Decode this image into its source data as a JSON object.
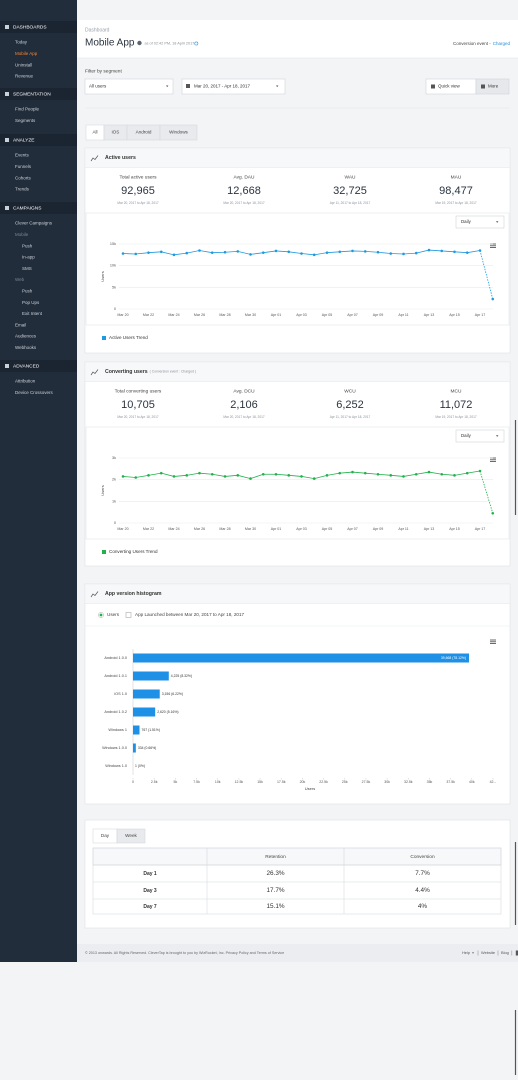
{
  "sidebar": [
    {
      "title": "DASHBOARDS",
      "items": [
        "Today",
        "Mobile App",
        "Uninstall",
        "Revenue"
      ]
    },
    {
      "title": "SEGMENTATION",
      "items": [
        "Find People",
        "Segments"
      ]
    },
    {
      "title": "ANALYZE",
      "items": [
        "Events",
        "Funnels",
        "Cohorts",
        "Trends"
      ]
    },
    {
      "title": "CAMPAIGNS",
      "items": [
        "Clever Campaigns",
        "Mobile",
        "Push",
        "In-app",
        "SMS",
        "Web",
        "Push",
        "Pop Ups",
        "Exit Intent",
        "Email",
        "Audiences",
        "Webhooks"
      ]
    },
    {
      "title": "ADVANCED",
      "items": [
        "Attribution",
        "Device Crossovers"
      ]
    }
  ],
  "header": {
    "breadcrumb": "Dashboard",
    "title": "Mobile App",
    "timestamp": "as of 02:42 PM, 18 April 2017",
    "conversion_label": "Conversion event -",
    "conversion_value": "Charged"
  },
  "filter": {
    "label": "Filter by segment",
    "segment": "All users",
    "date_range": "Mar 20, 2017 - Apr 18, 2017",
    "quick_view": "Quick view",
    "more": "More"
  },
  "platform_tabs": [
    "All",
    "iOS",
    "Android",
    "Windows"
  ],
  "panels": [
    {
      "stats": [
        {
          "label": "Total active users",
          "value": "92,965",
          "range": "Mar 20, 2017 to Apr 18, 2017"
        },
        {
          "label": "Avg. DAU",
          "value": "12,668",
          "range": "Mar 20, 2017 to Apr 18, 2017"
        },
        {
          "label": "WAU",
          "value": "32,725",
          "range": "Apr 11, 2017 to Apr 18, 2017"
        },
        {
          "label": "MAU",
          "value": "98,477",
          "range": "Mar 19, 2017 to Apr 18, 2017"
        }
      ]
    },
    {
      "stats": [
        {
          "label": "Total converting users",
          "value": "10,705",
          "range": "Mar 20, 2017 to Apr 18, 2017"
        },
        {
          "label": "Avg. DCU",
          "value": "2,106",
          "range": "Mar 20, 2017 to Apr 18, 2017"
        },
        {
          "label": "WCU",
          "value": "6,252",
          "range": "Apr 11, 2017 to Apr 18, 2017"
        },
        {
          "label": "MCU",
          "value": "11,072",
          "range": "Mar 19, 2017 to Apr 18, 2017"
        }
      ]
    }
  ],
  "chart_data": [
    {
      "type": "line",
      "title": "Active users",
      "dropdown": "Daily",
      "ylabel": "Users",
      "categories": [
        "Mar 20",
        null,
        "Mar 22",
        null,
        "Mar 24",
        null,
        "Mar 26",
        null,
        "Mar 28",
        null,
        "Mar 30",
        null,
        "Apr 01",
        null,
        "Apr 03",
        null,
        "Apr 05",
        null,
        "Apr 07",
        null,
        "Apr 09",
        null,
        "Apr 11",
        null,
        "Apr 13",
        null,
        "Apr 15",
        null,
        "Apr 17",
        null
      ],
      "series": [
        {
          "name": "Active Users Trend",
          "color": "#1e9be0",
          "values": [
            12800,
            12700,
            13000,
            13200,
            12500,
            12900,
            13500,
            13000,
            13100,
            13300,
            12600,
            13000,
            13400,
            13200,
            12800,
            12500,
            13000,
            13200,
            13400,
            13300,
            13100,
            12800,
            12700,
            12900,
            13600,
            13400,
            13200,
            13000,
            13500,
            2300
          ]
        }
      ],
      "ylim": [
        0,
        15000
      ],
      "yticks": [
        0,
        {
          "value": 5000,
          "label": "5k"
        },
        {
          "value": 10000,
          "label": "10k"
        },
        {
          "value": 15000,
          "label": "15k"
        }
      ],
      "grid": true
    },
    {
      "type": "line",
      "title": "Converting users",
      "subtitle": "( Conversion event : Charged )",
      "dropdown": "Daily",
      "ylabel": "Users",
      "categories": [
        "Mar 20",
        null,
        "Mar 22",
        null,
        "Mar 24",
        null,
        "Mar 26",
        null,
        "Mar 28",
        null,
        "Mar 30",
        null,
        "Apr 01",
        null,
        "Apr 03",
        null,
        "Apr 05",
        null,
        "Apr 07",
        null,
        "Apr 09",
        null,
        "Apr 11",
        null,
        "Apr 13",
        null,
        "Apr 15",
        null,
        "Apr 17",
        null
      ],
      "series": [
        {
          "name": "Converting Users Trend",
          "color": "#22b14c",
          "values": [
            2150,
            2100,
            2200,
            2300,
            2150,
            2200,
            2300,
            2250,
            2150,
            2200,
            2050,
            2250,
            2250,
            2200,
            2150,
            2050,
            2200,
            2300,
            2350,
            2300,
            2250,
            2200,
            2150,
            2250,
            2350,
            2250,
            2200,
            2300,
            2400,
            450
          ]
        }
      ],
      "ylim": [
        0,
        3000
      ],
      "yticks": [
        0,
        {
          "value": 1000,
          "label": "1k"
        },
        {
          "value": 2000,
          "label": "2k"
        },
        {
          "value": 3000,
          "label": "3k"
        }
      ],
      "grid": true
    },
    {
      "type": "hbar",
      "title": "App version histogram",
      "radio": "Users",
      "checkbox": "App Launched between Mar 20, 2017 to Apr 18, 2017",
      "xlabel": "Users",
      "color": "#1e90e6",
      "categories": [
        "Android 1.0.0",
        "Android 1.0.1",
        "iOS 1.0",
        "Android 1.0.2",
        "Windows 1",
        "Windows 1.0.0",
        "Windows 1.0"
      ],
      "values": [
        39668,
        4225,
        3156,
        2620,
        767,
        334,
        1
      ],
      "value_labels": [
        "39,668 (78.12%)",
        "4,225 (8.32%)",
        "3,156 (6.22%)",
        "2,620 (5.16%)",
        "767 (1.51%)",
        "334 (0.66%)",
        "1 (0%)"
      ],
      "xlim": [
        0,
        42500
      ],
      "xticks": [
        0,
        {
          "value": 2500,
          "label": "2.5k"
        },
        {
          "value": 5000,
          "label": "5k"
        },
        {
          "value": 7500,
          "label": "7.5k"
        },
        {
          "value": 10000,
          "label": "10k"
        },
        {
          "value": 12500,
          "label": "12.5k"
        },
        {
          "value": 15000,
          "label": "15k"
        },
        {
          "value": 17500,
          "label": "17.5k"
        },
        {
          "value": 20000,
          "label": "20k"
        },
        {
          "value": 22500,
          "label": "22.5k"
        },
        {
          "value": 25000,
          "label": "25k"
        },
        {
          "value": 27500,
          "label": "27.5k"
        },
        {
          "value": 30000,
          "label": "30k"
        },
        {
          "value": 32500,
          "label": "32.5k"
        },
        {
          "value": 35000,
          "label": "35k"
        },
        {
          "value": 37500,
          "label": "37.5k"
        },
        {
          "value": 40000,
          "label": "40k"
        },
        {
          "value": 42500,
          "label": "42..."
        }
      ]
    }
  ],
  "retention": {
    "tabs": [
      "Day",
      "Week"
    ],
    "columns": [
      "Retention",
      "Conversion"
    ],
    "rows": [
      [
        "Day 1",
        "26.3%",
        "7.7%"
      ],
      [
        "Day 3",
        "17.7%",
        "4.4%"
      ],
      [
        "Day 7",
        "15.1%",
        "4%"
      ]
    ]
  },
  "footer": {
    "text": "© 2013 onwards. All Rights Reserved. CleverTap is brought to you by WizRocket, Inc. Privacy Policy and Terms of Service",
    "links": [
      "Help",
      "Website",
      "Blog"
    ]
  }
}
